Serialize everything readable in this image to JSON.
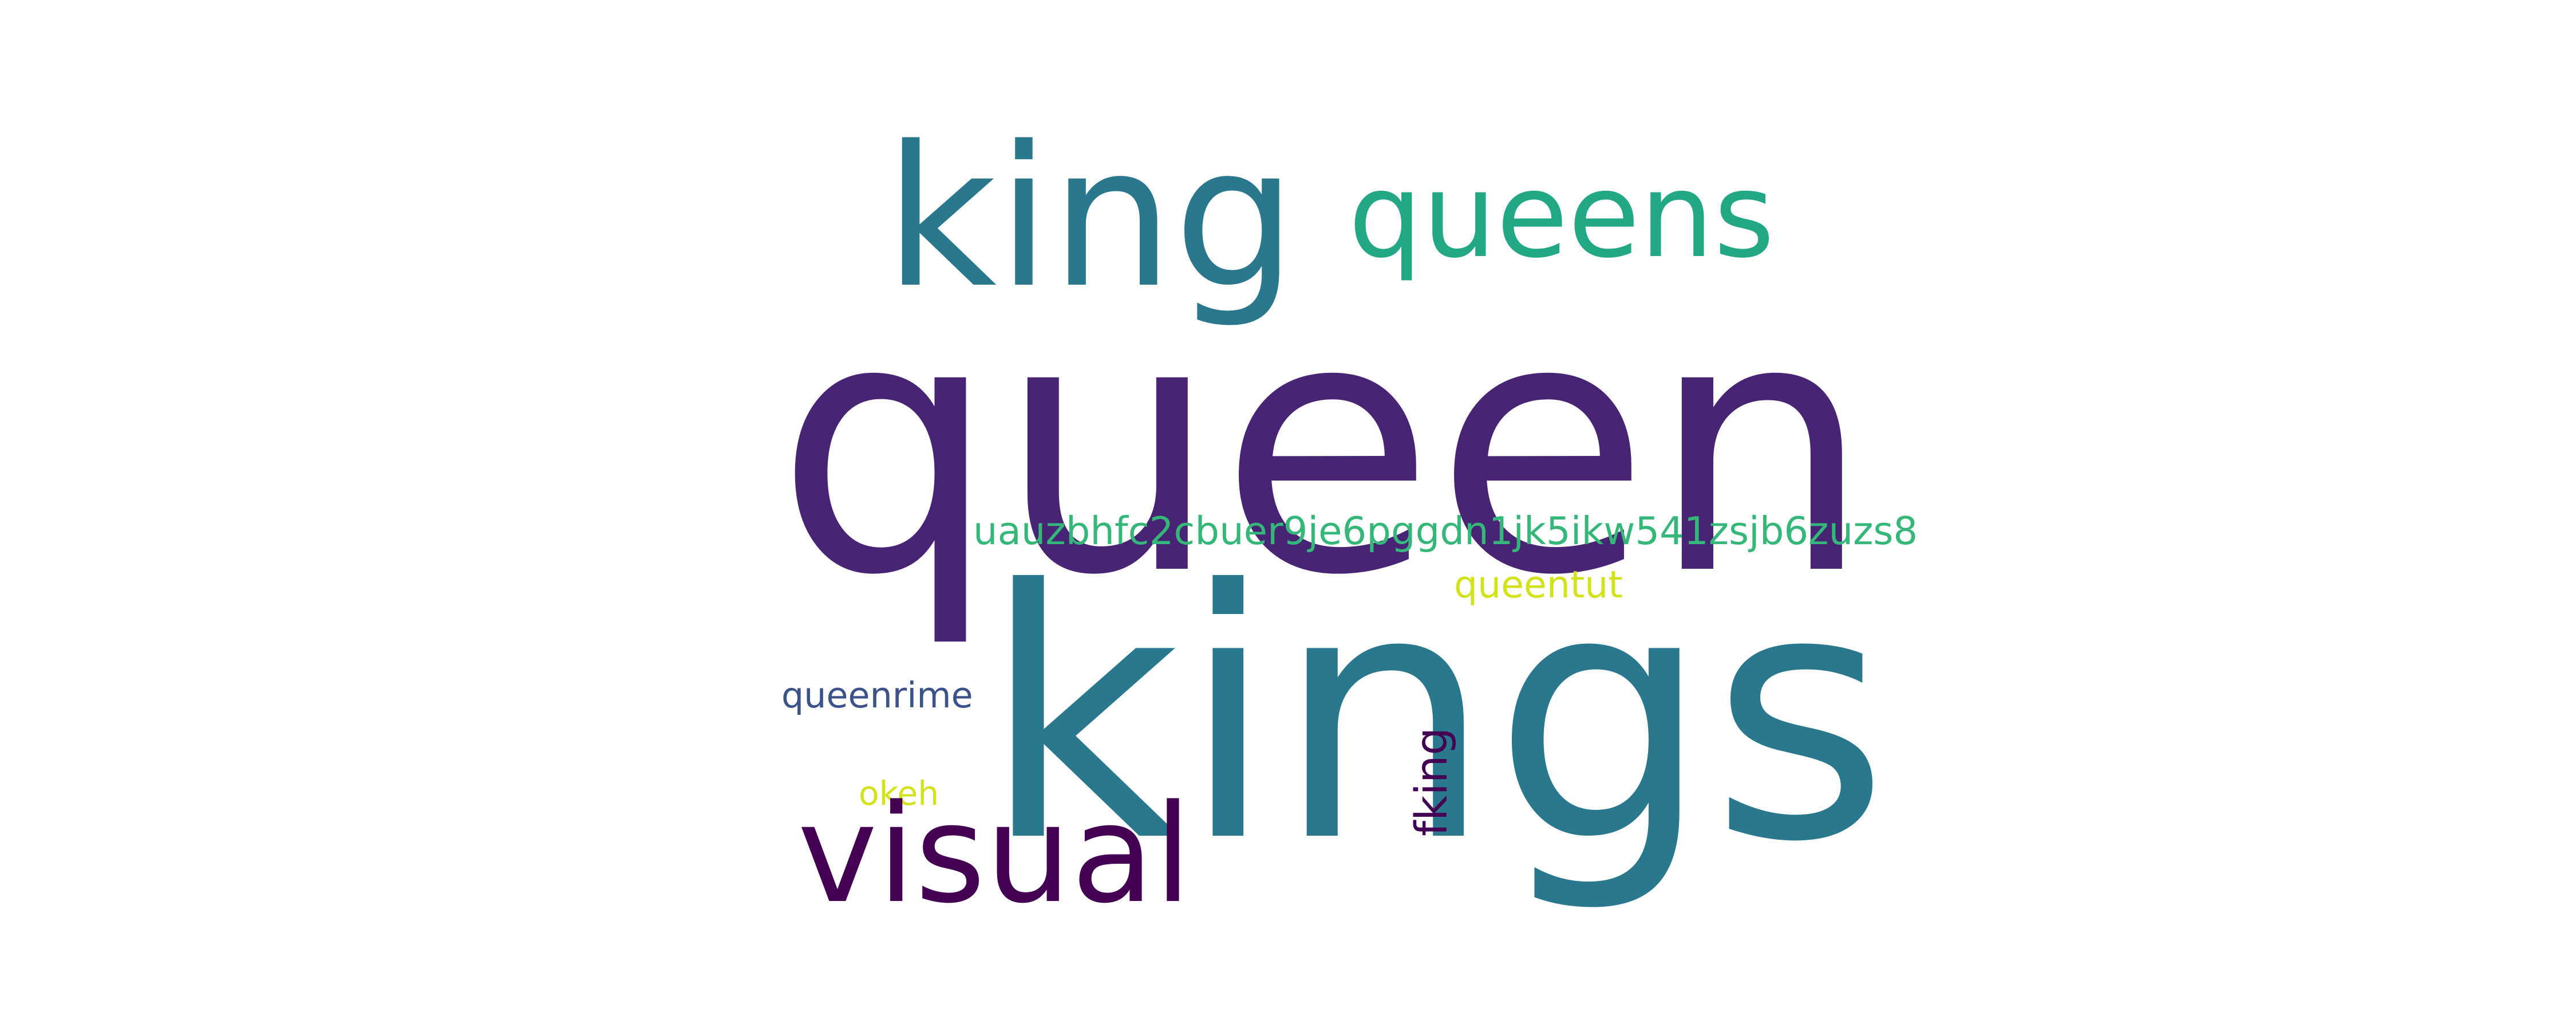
{
  "words": [
    {
      "key": "queen",
      "text": "queen",
      "color": "#482475",
      "rank": 1
    },
    {
      "key": "kings",
      "text": "kings",
      "color": "#2a788e",
      "rank": 2
    },
    {
      "key": "king",
      "text": "king",
      "color": "#2a788e",
      "rank": 3
    },
    {
      "key": "queens",
      "text": "queens",
      "color": "#22a884",
      "rank": 4
    },
    {
      "key": "visual",
      "text": "visual",
      "color": "#440154",
      "rank": 5
    },
    {
      "key": "hash",
      "text": "uauzbhfc2cbuer9je6pggdn1jk5ikw541zsjb6zuzs8",
      "color": "#35b779",
      "rank": 6
    },
    {
      "key": "queentut",
      "text": "queentut",
      "color": "#d2e21b",
      "rank": 7
    },
    {
      "key": "queenrime",
      "text": "queenrime",
      "color": "#3b528b",
      "rank": 8
    },
    {
      "key": "okeh",
      "text": "okeh",
      "color": "#d2e21b",
      "rank": 9
    },
    {
      "key": "fking",
      "text": "fking",
      "color": "#440154",
      "rank": 10
    }
  ]
}
